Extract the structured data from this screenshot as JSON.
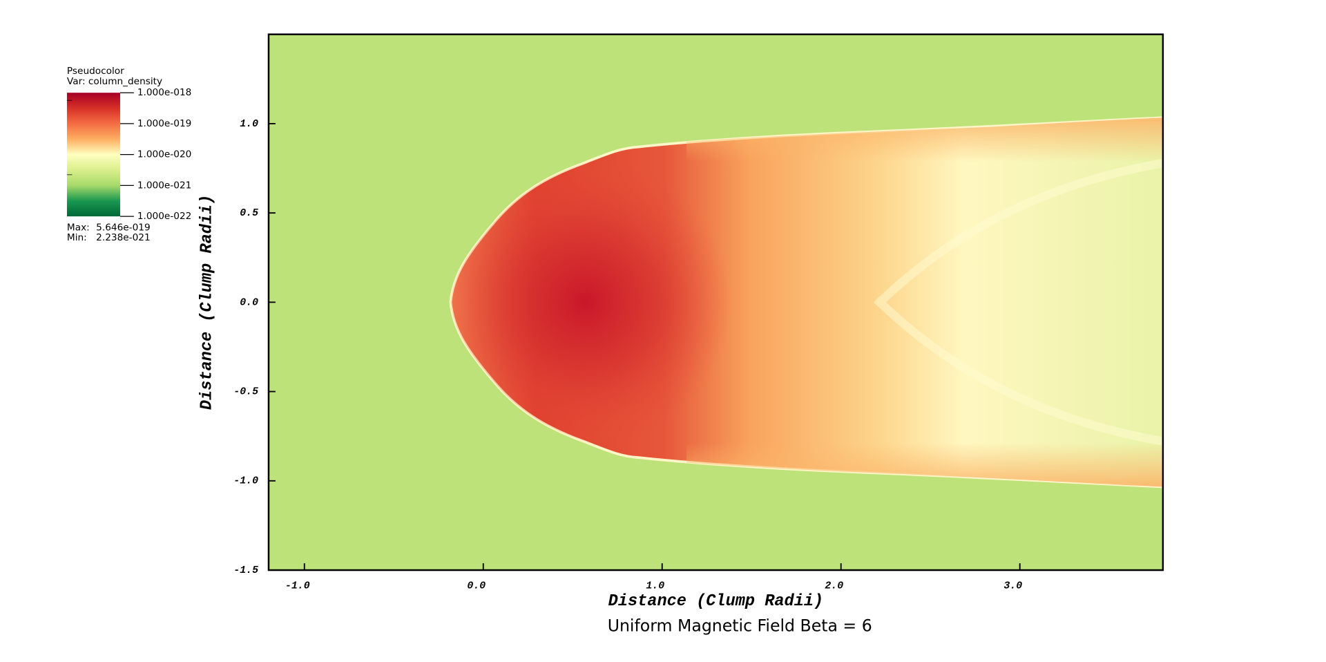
{
  "chart_data": {
    "type": "pseudocolor",
    "title": "Uniform Magnetic Field Beta = 6",
    "xlabel": "Distance (Clump Radii)",
    "ylabel": "Distance (Clump Radii)",
    "xlim": [
      -1.2,
      3.8
    ],
    "ylim": [
      -1.5,
      1.5
    ],
    "xticks": [
      {
        "value": -1,
        "label": "-1.0"
      },
      {
        "value": 0,
        "label": "0.0"
      },
      {
        "value": 1,
        "label": "1.0"
      },
      {
        "value": 2,
        "label": "2.0"
      },
      {
        "value": 3,
        "label": "3.0"
      }
    ],
    "yticks": [
      {
        "value": -1.5,
        "label": "-1.5"
      },
      {
        "value": -1,
        "label": "-1.0"
      },
      {
        "value": -0.5,
        "label": "-0.5"
      },
      {
        "value": 0,
        "label": "0.0"
      },
      {
        "value": 0.5,
        "label": "0.5"
      },
      {
        "value": 1,
        "label": "1.0"
      }
    ],
    "legend": {
      "title": "Pseudocolor",
      "variable": "Var: column_density",
      "log_scale": true,
      "range": [
        1e-22,
        1e-18
      ],
      "colors": [
        "#a50026",
        "#d73027",
        "#f46d43",
        "#fdae61",
        "#ffffbf",
        "#d9ef8b",
        "#a6d96a",
        "#1a9850",
        "#006837"
      ],
      "ticks": [
        {
          "value": 1e-18,
          "label": "1.000e-018"
        },
        {
          "value": 1e-19,
          "label": "1.000e-019"
        },
        {
          "value": 1e-20,
          "label": "1.000e-020"
        },
        {
          "value": 1e-21,
          "label": "1.000e-021"
        },
        {
          "value": 1e-22,
          "label": "1.000e-022"
        }
      ],
      "max_title": "Max:",
      "max": {
        "value": 5.646e-19,
        "label": "5.646e-019"
      },
      "min_title": "Min:",
      "min": {
        "value": 2.238e-21,
        "label": "2.238e-021"
      }
    }
  }
}
